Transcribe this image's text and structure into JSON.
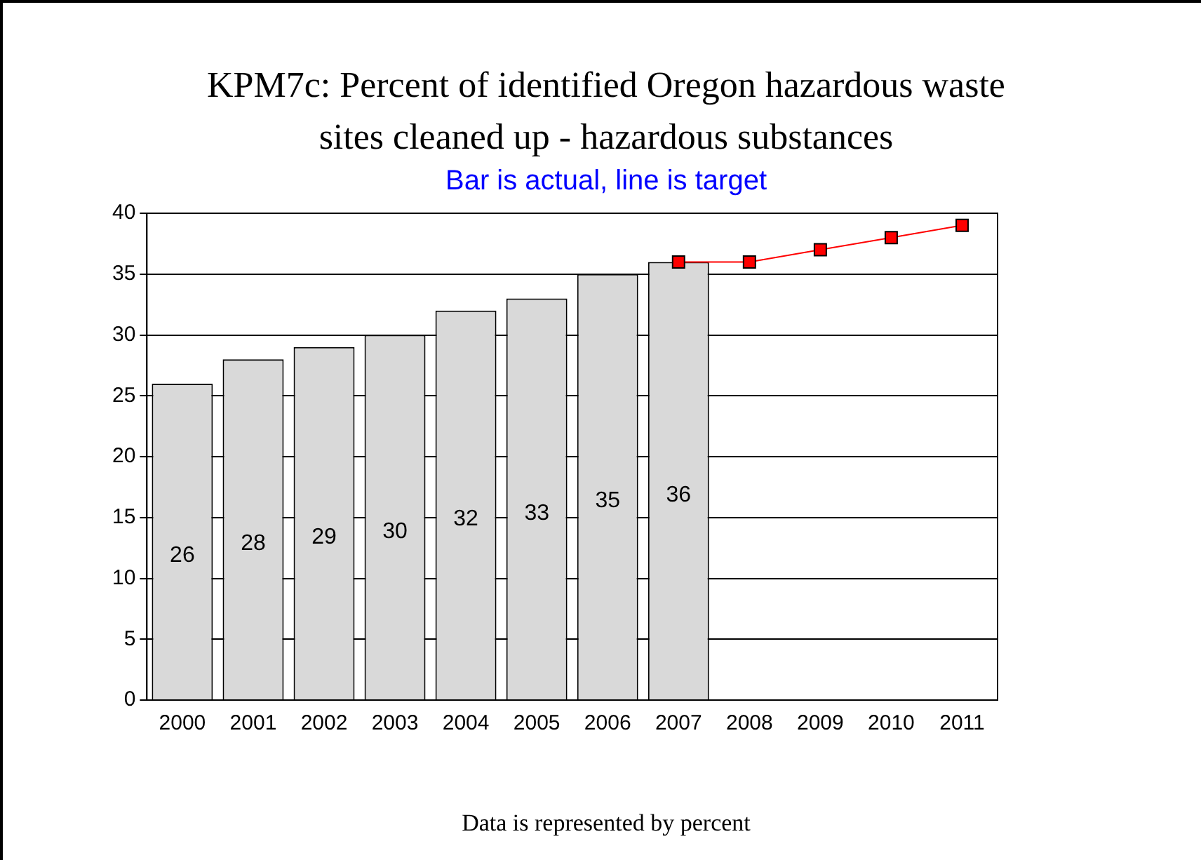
{
  "chart_data": {
    "type": "bar",
    "title": "KPM7c:  Percent of identified Oregon hazardous waste sites cleaned up - hazardous substances",
    "subtitle": "Bar is actual, line is target",
    "annotations": [
      "Data is represented by percent"
    ],
    "categories": [
      "2000",
      "2001",
      "2002",
      "2003",
      "2004",
      "2005",
      "2006",
      "2007",
      "2008",
      "2009",
      "2010",
      "2011"
    ],
    "series": [
      {
        "color": "#d9d9d9",
        "values": [
          26,
          28,
          29,
          30,
          32,
          33,
          35,
          36,
          null,
          null,
          null,
          null
        ],
        "value_labels": [
          "26",
          "28",
          "29",
          "30",
          "32",
          "33",
          "35",
          "36",
          null,
          null,
          null,
          null
        ]
      },
      {
        "type": "line",
        "color": "#ff0000",
        "values": [
          null,
          null,
          null,
          null,
          null,
          null,
          null,
          36,
          36,
          37,
          38,
          39
        ]
      }
    ],
    "ylim": [
      0,
      40
    ],
    "yticks": [
      0,
      5,
      10,
      15,
      20,
      25,
      30,
      35,
      40
    ],
    "grid": "y",
    "marker": "square"
  }
}
